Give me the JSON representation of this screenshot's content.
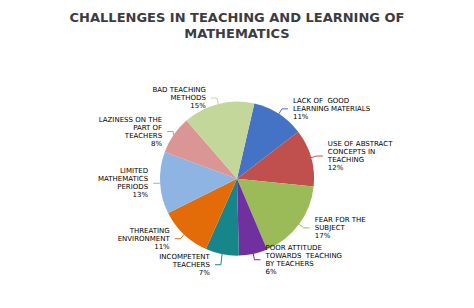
{
  "chart_data": {
    "type": "pie",
    "title": "CHALLENGES IN TEACHING AND LEARNING OF\nMATHEMATICS",
    "categories": [
      "LACK OF  GOOD\nLEARNING MATERIALS",
      "USE OF ABSTRACT\nCONCEPTS IN\nTEACHING",
      "FEAR FOR THE\nSUBJECT",
      "POOR ATTITUDE\nTOWARDS  TEACHING\nBY TEACHERS",
      "INCOMPETENT\nTEACHERS",
      "THREATING\nENVIRONMENT",
      "LIMITED\nMATHEMATICS\nPERIODS",
      "LAZINESS ON THE\nPART OF\nTEACHERS",
      "BAD TEACHING\nMETHODS"
    ],
    "values": [
      11,
      12,
      17,
      6,
      7,
      11,
      13,
      8,
      15
    ],
    "value_labels": [
      "11%",
      "12%",
      "17%",
      "6%",
      "7%",
      "11%",
      "13%",
      "8%",
      "15%"
    ],
    "colors": [
      "#4472C4",
      "#C0504D",
      "#9BBB59",
      "#7030A0",
      "#17868A",
      "#E36C09",
      "#8DB4E2",
      "#D99694",
      "#C4D79B"
    ],
    "data_labels": true,
    "legend": false
  }
}
